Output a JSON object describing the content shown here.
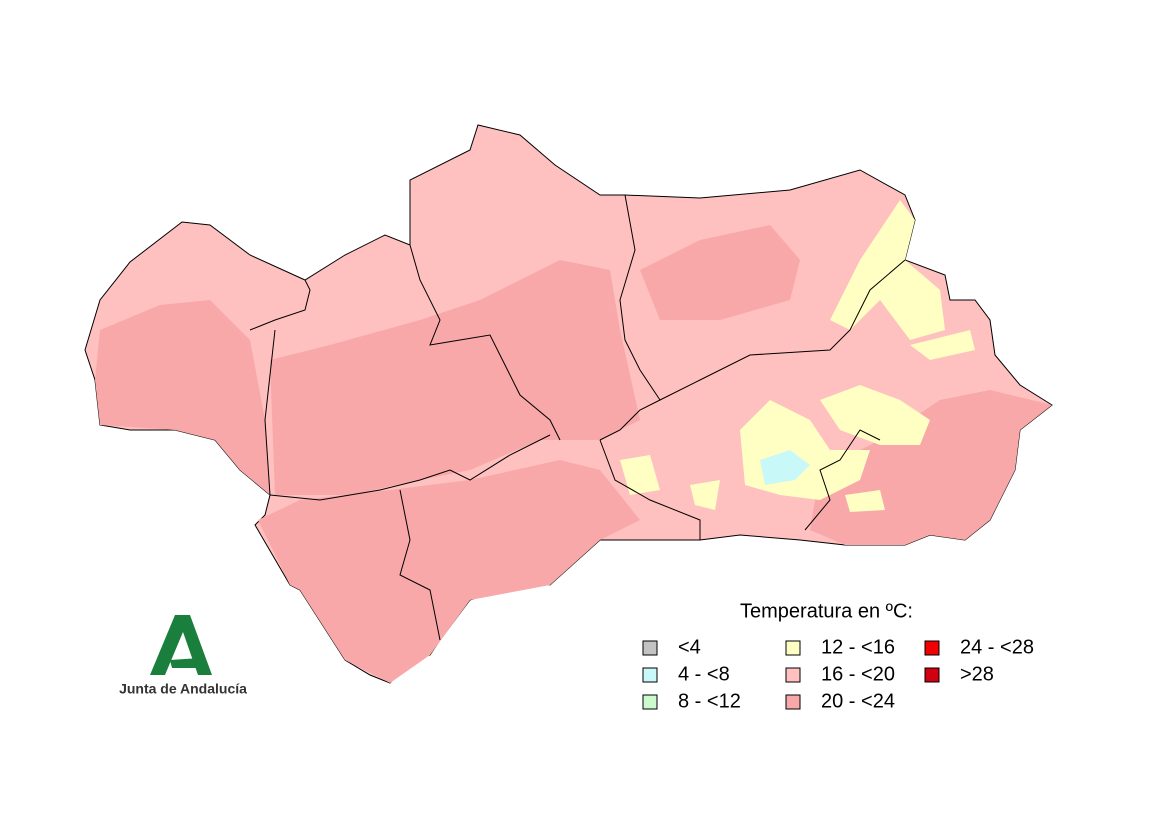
{
  "legend": {
    "title": "Temperatura en ºC:",
    "items": [
      {
        "label": "<4",
        "color": "#c3c3c3"
      },
      {
        "label": "4 - <8",
        "color": "#c8f8f8"
      },
      {
        "label": "8 - <12",
        "color": "#ccfacc"
      },
      {
        "label": "12 - <16",
        "color": "#ffffc4"
      },
      {
        "label": "16 - <20",
        "color": "#ffc0c0"
      },
      {
        "label": "20 - <24",
        "color": "#f8a8a8"
      },
      {
        "label": "24 - <28",
        "color": "#f00000"
      },
      {
        "label": ">28",
        "color": "#d00010"
      }
    ]
  },
  "logo": {
    "text": "Junta de Andalucía"
  }
}
